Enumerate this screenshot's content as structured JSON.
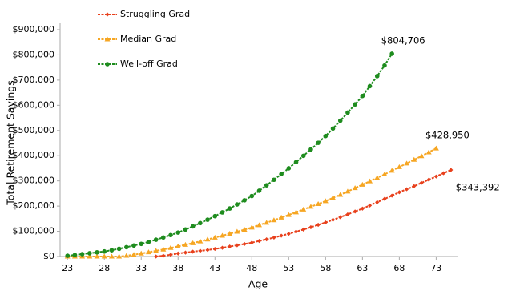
{
  "chart_data": {
    "type": "line",
    "x_label": "Age",
    "y_label": "Total Retirement Savings",
    "x": [
      23,
      24,
      25,
      26,
      27,
      28,
      29,
      30,
      31,
      32,
      33,
      34,
      35,
      36,
      37,
      38,
      39,
      40,
      41,
      42,
      43,
      44,
      45,
      46,
      47,
      48,
      49,
      50,
      51,
      52,
      53,
      54,
      55,
      56,
      57,
      58,
      59,
      60,
      61,
      62,
      63,
      64,
      65,
      66,
      67,
      68,
      69,
      70,
      71,
      72,
      73,
      74,
      75
    ],
    "xlim": [
      22,
      76
    ],
    "xticks": [
      23,
      28,
      33,
      38,
      43,
      48,
      53,
      58,
      63,
      68,
      73
    ],
    "ylim": [
      0,
      900000
    ],
    "yticks": [
      {
        "value": 0,
        "label": "$0"
      },
      {
        "value": 100000,
        "label": "$100,000"
      },
      {
        "value": 200000,
        "label": "$200,000"
      },
      {
        "value": 300000,
        "label": "$300,000"
      },
      {
        "value": 400000,
        "label": "$400,000"
      },
      {
        "value": 500000,
        "label": "$500,000"
      },
      {
        "value": 600000,
        "label": "$600,000"
      },
      {
        "value": 700000,
        "label": "$700,000"
      },
      {
        "value": 800000,
        "label": "$800,000"
      },
      {
        "value": 900000,
        "label": "$900,000"
      }
    ],
    "grid": false,
    "legend": "top-left",
    "series": [
      {
        "name": "Struggling Grad",
        "color": "#e8401c",
        "marker": "diamond",
        "values": [
          null,
          null,
          null,
          null,
          null,
          null,
          null,
          null,
          null,
          null,
          null,
          null,
          0,
          3000,
          7000,
          12000,
          15500,
          19000,
          22500,
          26000,
          30000,
          34500,
          39500,
          44500,
          49500,
          55000,
          61500,
          68000,
          75000,
          82500,
          90000,
          98500,
          107000,
          116000,
          125500,
          135000,
          145500,
          156000,
          167000,
          178500,
          190000,
          202500,
          215500,
          228500,
          241500,
          255000,
          267000,
          279000,
          292000,
          305000,
          317500,
          330500,
          343392
        ]
      },
      {
        "name": "Median Grad",
        "color": "#f6a623",
        "marker": "triangle",
        "values": [
          0,
          0,
          0,
          0,
          0,
          0,
          0,
          0,
          3000,
          7000,
          12000,
          17000,
          22500,
          28000,
          34000,
          40000,
          46500,
          53000,
          60000,
          67500,
          75000,
          82500,
          90500,
          98500,
          106500,
          115000,
          124500,
          134000,
          144000,
          154500,
          165000,
          175500,
          186500,
          197500,
          208500,
          220000,
          232500,
          245000,
          258000,
          271500,
          285000,
          298500,
          312000,
          326000,
          340500,
          355000,
          369500,
          384000,
          398500,
          413500,
          428950,
          null,
          null
        ]
      },
      {
        "name": "Well-off Grad",
        "color": "#1e8c1e",
        "marker": "circle",
        "values": [
          3000,
          6000,
          9500,
          13000,
          16500,
          20000,
          25000,
          30500,
          37000,
          43500,
          50000,
          58000,
          66500,
          75500,
          85000,
          95000,
          107000,
          119500,
          132500,
          146000,
          160000,
          175000,
          190500,
          206500,
          223000,
          240000,
          261000,
          282500,
          304500,
          327000,
          350000,
          374500,
          399500,
          425000,
          451000,
          478000,
          508000,
          539000,
          571000,
          603500,
          637000,
          676000,
          716000,
          758000,
          804706,
          null,
          null,
          null,
          null,
          null,
          null,
          null,
          null
        ]
      }
    ],
    "annotations": [
      "$343,392",
      "$428,950",
      "$804,706"
    ]
  }
}
